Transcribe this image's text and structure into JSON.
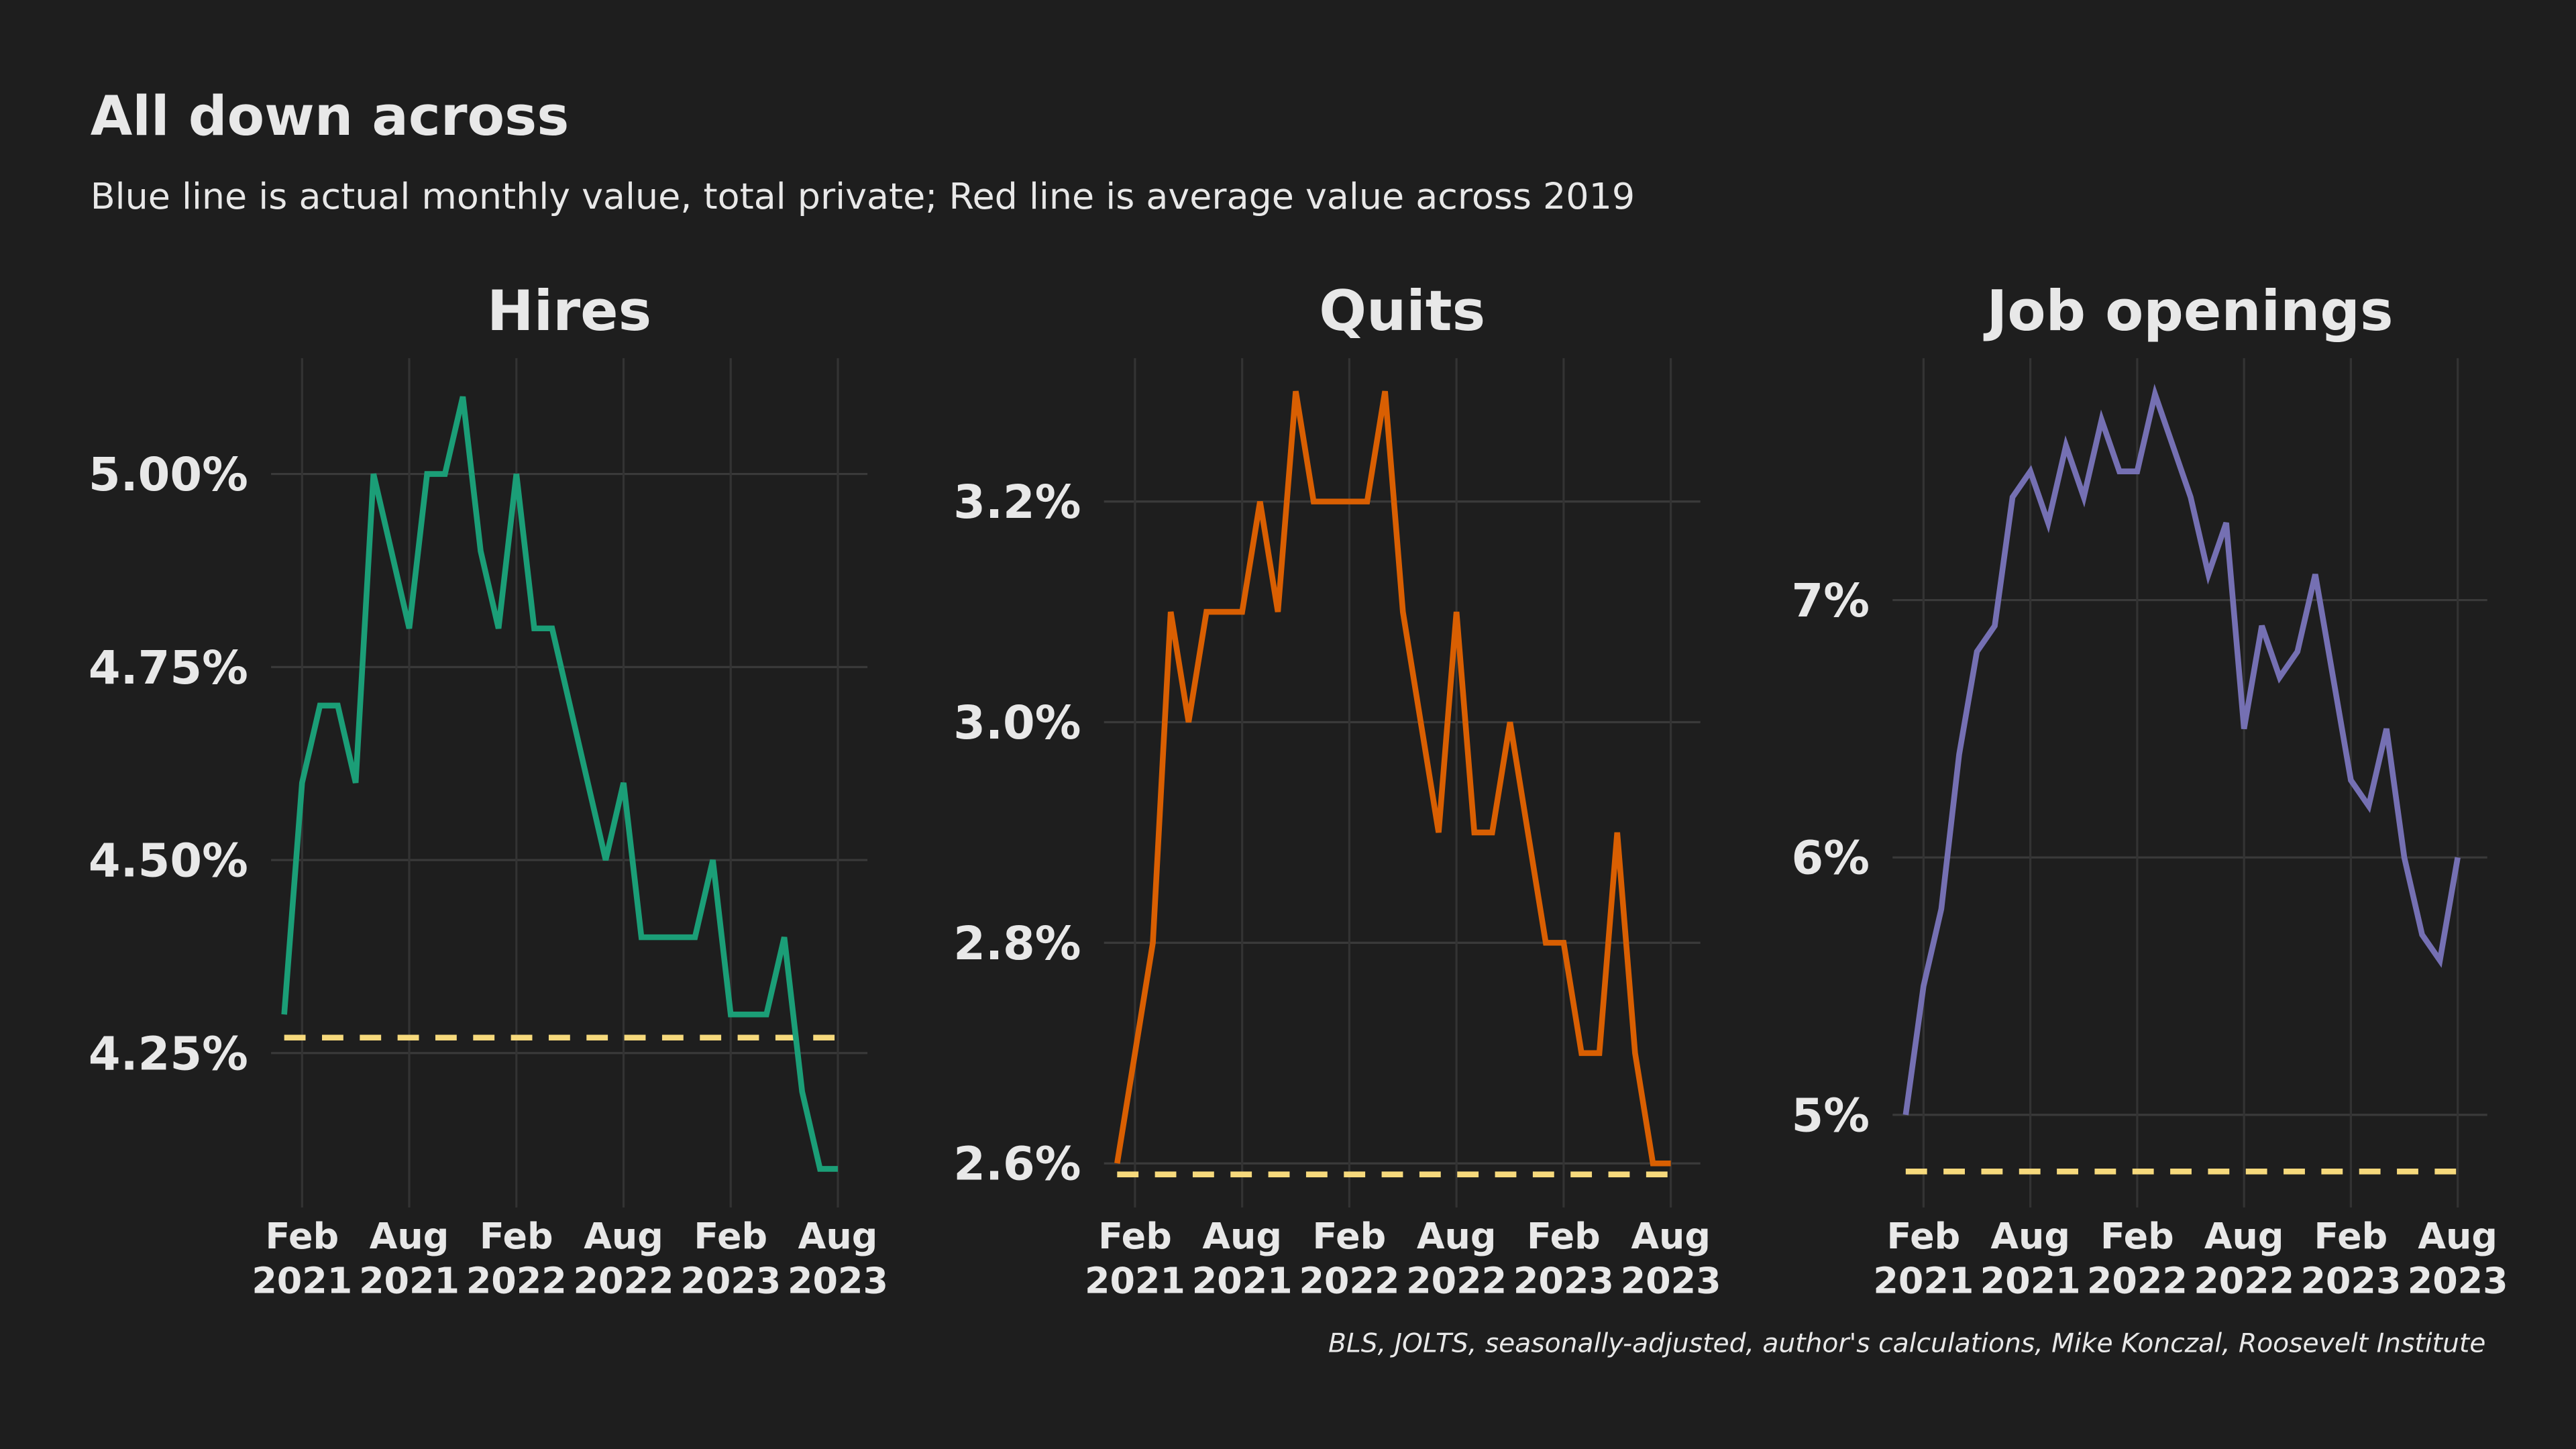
{
  "title": "All down across",
  "subtitle": "Blue line is actual monthly value, total private; Red line is average value across 2019",
  "caption": "BLS, JOLTS, seasonally-adjusted, author's calculations, Mike Konczal, Roosevelt Institute",
  "chart_data": [
    {
      "type": "line",
      "title": "Hires",
      "color": "#1b9e77",
      "x": [
        "2021-01",
        "2021-02",
        "2021-03",
        "2021-04",
        "2021-05",
        "2021-06",
        "2021-07",
        "2021-08",
        "2021-09",
        "2021-10",
        "2021-11",
        "2021-12",
        "2022-01",
        "2022-02",
        "2022-03",
        "2022-04",
        "2022-05",
        "2022-06",
        "2022-07",
        "2022-08",
        "2022-09",
        "2022-10",
        "2022-11",
        "2022-12",
        "2023-01",
        "2023-02",
        "2023-03",
        "2023-04",
        "2023-05",
        "2023-06",
        "2023-07",
        "2023-08"
      ],
      "values": [
        4.3,
        4.6,
        4.7,
        4.7,
        4.6,
        5.0,
        4.9,
        4.8,
        5.0,
        5.0,
        5.1,
        4.9,
        4.8,
        5.0,
        4.8,
        4.8,
        4.7,
        4.6,
        4.5,
        4.6,
        4.4,
        4.4,
        4.4,
        4.4,
        4.5,
        4.3,
        4.3,
        4.3,
        4.4,
        4.2,
        4.1,
        4.1
      ],
      "reference": 4.27,
      "reference_color": "#f6d97c",
      "ylim": [
        4.05,
        5.15
      ],
      "yticks": [
        {
          "value": 4.25,
          "label": "4.25%"
        },
        {
          "value": 4.5,
          "label": "4.50%"
        },
        {
          "value": 4.75,
          "label": "4.75%"
        },
        {
          "value": 5,
          "label": "5.00%"
        }
      ],
      "xticks": [
        {
          "value": "2021-02",
          "label": "Feb 2021"
        },
        {
          "value": "2021-08",
          "label": "Aug 2021"
        },
        {
          "value": "2022-02",
          "label": "Feb 2022"
        },
        {
          "value": "2022-08",
          "label": "Aug 2022"
        },
        {
          "value": "2023-02",
          "label": "Feb 2023"
        },
        {
          "value": "2023-08",
          "label": "Aug 2023"
        }
      ],
      "grid": true
    },
    {
      "type": "line",
      "title": "Quits",
      "color": "#d95f02",
      "x": [
        "2021-01",
        "2021-02",
        "2021-03",
        "2021-04",
        "2021-05",
        "2021-06",
        "2021-07",
        "2021-08",
        "2021-09",
        "2021-10",
        "2021-11",
        "2021-12",
        "2022-01",
        "2022-02",
        "2022-03",
        "2022-04",
        "2022-05",
        "2022-06",
        "2022-07",
        "2022-08",
        "2022-09",
        "2022-10",
        "2022-11",
        "2022-12",
        "2023-01",
        "2023-02",
        "2023-03",
        "2023-04",
        "2023-05",
        "2023-06",
        "2023-07",
        "2023-08"
      ],
      "values": [
        2.6,
        2.7,
        2.8,
        3.1,
        3.0,
        3.1,
        3.1,
        3.1,
        3.2,
        3.1,
        3.3,
        3.2,
        3.2,
        3.2,
        3.2,
        3.3,
        3.1,
        3.0,
        2.9,
        3.1,
        2.9,
        2.9,
        3.0,
        2.9,
        2.8,
        2.8,
        2.7,
        2.7,
        2.9,
        2.7,
        2.6,
        2.6
      ],
      "reference": 2.59,
      "reference_color": "#f6d97c",
      "ylim": [
        2.56,
        3.33
      ],
      "yticks": [
        {
          "value": 2.6,
          "label": "2.6%"
        },
        {
          "value": 2.8,
          "label": "2.8%"
        },
        {
          "value": 3,
          "label": "3.0%"
        },
        {
          "value": 3.2,
          "label": "3.2%"
        }
      ],
      "xticks": [
        {
          "value": "2021-02",
          "label": "Feb 2021"
        },
        {
          "value": "2021-08",
          "label": "Aug 2021"
        },
        {
          "value": "2022-02",
          "label": "Feb 2022"
        },
        {
          "value": "2022-08",
          "label": "Aug 2022"
        },
        {
          "value": "2023-02",
          "label": "Feb 2023"
        },
        {
          "value": "2023-08",
          "label": "Aug 2023"
        }
      ],
      "grid": true
    },
    {
      "type": "line",
      "title": "Job openings",
      "color": "#7570b3",
      "x": [
        "2021-01",
        "2021-02",
        "2021-03",
        "2021-04",
        "2021-05",
        "2021-06",
        "2021-07",
        "2021-08",
        "2021-09",
        "2021-10",
        "2021-11",
        "2021-12",
        "2022-01",
        "2022-02",
        "2022-03",
        "2022-04",
        "2022-05",
        "2022-06",
        "2022-07",
        "2022-08",
        "2022-09",
        "2022-10",
        "2022-11",
        "2022-12",
        "2023-01",
        "2023-02",
        "2023-03",
        "2023-04",
        "2023-05",
        "2023-06",
        "2023-07",
        "2023-08"
      ],
      "values": [
        5.0,
        5.5,
        5.8,
        6.4,
        6.8,
        6.9,
        7.4,
        7.5,
        7.3,
        7.6,
        7.4,
        7.7,
        7.5,
        7.5,
        7.8,
        7.6,
        7.4,
        7.1,
        7.3,
        6.5,
        6.9,
        6.7,
        6.8,
        7.1,
        6.7,
        6.3,
        6.2,
        6.5,
        6.0,
        5.7,
        5.6,
        6.0
      ],
      "reference": 4.78,
      "reference_color": "#f6d97c",
      "ylim": [
        4.64,
        7.94
      ],
      "yticks": [
        {
          "value": 5,
          "label": "5%"
        },
        {
          "value": 6,
          "label": "6%"
        },
        {
          "value": 7,
          "label": "7%"
        }
      ],
      "xticks": [
        {
          "value": "2021-02",
          "label": "Feb 2021"
        },
        {
          "value": "2021-08",
          "label": "Aug 2021"
        },
        {
          "value": "2022-02",
          "label": "Feb 2022"
        },
        {
          "value": "2022-08",
          "label": "Aug 2022"
        },
        {
          "value": "2023-02",
          "label": "Feb 2023"
        },
        {
          "value": "2023-08",
          "label": "Aug 2023"
        }
      ],
      "grid": true
    }
  ]
}
